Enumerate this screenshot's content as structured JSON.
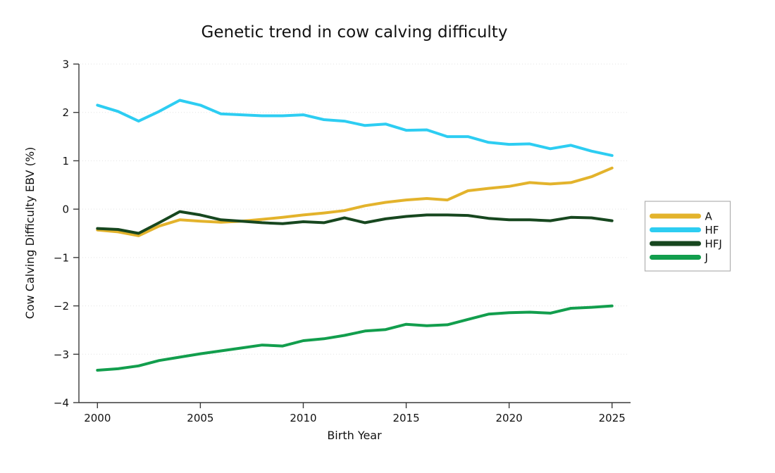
{
  "figure": {
    "title": "Genetic trend in cow calving difficulty"
  },
  "chart_data": {
    "type": "line",
    "title": "Genetic trend in cow calving difficulty",
    "xlabel": "Birth Year",
    "ylabel": "Cow Calving Difficulty EBV (%)",
    "xlim": [
      1999.1,
      2025.9
    ],
    "ylim": [
      -4,
      3
    ],
    "xticks": [
      2000,
      2005,
      2010,
      2015,
      2020,
      2025
    ],
    "yticks": [
      3,
      2,
      1,
      0,
      -1,
      -2,
      -3,
      -4
    ],
    "grid": "horizontal-dotted",
    "legend_position": "outside-right",
    "axis_color": "#3a3a3a",
    "grid_color": "#e3e3e3",
    "legend_border_color": "#b0b0b0",
    "x": [
      2000,
      2001,
      2002,
      2003,
      2004,
      2005,
      2006,
      2007,
      2008,
      2009,
      2010,
      2011,
      2012,
      2013,
      2014,
      2015,
      2016,
      2017,
      2018,
      2019,
      2020,
      2021,
      2022,
      2023,
      2024,
      2025
    ],
    "series": [
      {
        "name": "A",
        "color": "#E3B32C",
        "values": [
          -0.43,
          -0.47,
          -0.55,
          -0.35,
          -0.22,
          -0.25,
          -0.27,
          -0.25,
          -0.21,
          -0.17,
          -0.12,
          -0.08,
          -0.03,
          0.07,
          0.14,
          0.19,
          0.22,
          0.19,
          0.38,
          0.43,
          0.47,
          0.55,
          0.52,
          0.55,
          0.67,
          0.85
        ]
      },
      {
        "name": "HF",
        "color": "#2DCDF2",
        "values": [
          2.15,
          2.02,
          1.82,
          2.02,
          2.25,
          2.15,
          1.97,
          1.95,
          1.93,
          1.93,
          1.95,
          1.85,
          1.82,
          1.73,
          1.76,
          1.63,
          1.64,
          1.5,
          1.5,
          1.38,
          1.34,
          1.35,
          1.25,
          1.32,
          1.2,
          1.11
        ]
      },
      {
        "name": "HFJ",
        "color": "#17471F",
        "values": [
          -0.4,
          -0.42,
          -0.5,
          -0.28,
          -0.05,
          -0.12,
          -0.22,
          -0.25,
          -0.28,
          -0.3,
          -0.26,
          -0.28,
          -0.18,
          -0.28,
          -0.2,
          -0.15,
          -0.12,
          -0.12,
          -0.13,
          -0.19,
          -0.22,
          -0.22,
          -0.24,
          -0.17,
          -0.18,
          -0.24
        ]
      },
      {
        "name": "J",
        "color": "#129E4D",
        "values": [
          -3.33,
          -3.3,
          -3.24,
          -3.13,
          -3.06,
          -2.99,
          -2.93,
          -2.87,
          -2.81,
          -2.83,
          -2.72,
          -2.68,
          -2.61,
          -2.52,
          -2.49,
          -2.38,
          -2.41,
          -2.39,
          -2.28,
          -2.17,
          -2.14,
          -2.13,
          -2.15,
          -2.05,
          -2.03,
          -2.0
        ]
      }
    ]
  }
}
